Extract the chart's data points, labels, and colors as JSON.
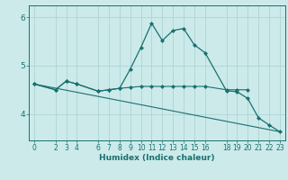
{
  "bg_color": "#cceaea",
  "line_color": "#1a7070",
  "grid_color": "#add4d4",
  "xlabel": "Humidex (Indice chaleur)",
  "xlim": [
    -0.5,
    23.5
  ],
  "ylim": [
    3.45,
    6.25
  ],
  "yticks": [
    4,
    5,
    6
  ],
  "xticks": [
    0,
    2,
    3,
    4,
    6,
    7,
    8,
    9,
    10,
    11,
    12,
    13,
    14,
    15,
    16,
    18,
    19,
    20,
    21,
    22,
    23
  ],
  "line1_x": [
    0,
    2,
    3,
    4,
    6,
    7,
    8,
    9,
    10,
    11,
    12,
    13,
    14,
    15,
    16,
    18,
    19,
    20,
    21,
    22,
    23
  ],
  "line1_y": [
    4.62,
    4.5,
    4.68,
    4.62,
    4.47,
    4.5,
    4.53,
    4.93,
    5.38,
    5.88,
    5.52,
    5.73,
    5.77,
    5.43,
    5.27,
    4.48,
    4.46,
    4.32,
    3.92,
    3.77,
    3.63
  ],
  "line2_x": [
    0,
    2,
    3,
    4,
    6,
    7,
    8,
    9,
    10,
    11,
    12,
    13,
    14,
    15,
    16,
    18,
    19,
    20
  ],
  "line2_y": [
    4.62,
    4.5,
    4.68,
    4.62,
    4.47,
    4.5,
    4.53,
    4.55,
    4.57,
    4.57,
    4.57,
    4.57,
    4.57,
    4.57,
    4.57,
    4.5,
    4.5,
    4.5
  ],
  "line3_x": [
    0,
    23
  ],
  "line3_y": [
    4.62,
    3.63
  ],
  "marker": "D",
  "markersize": 2.0,
  "linewidth1": 0.9,
  "linewidth2": 0.8,
  "linewidth3": 0.8,
  "tick_fontsize": 5.5,
  "xlabel_fontsize": 6.5
}
